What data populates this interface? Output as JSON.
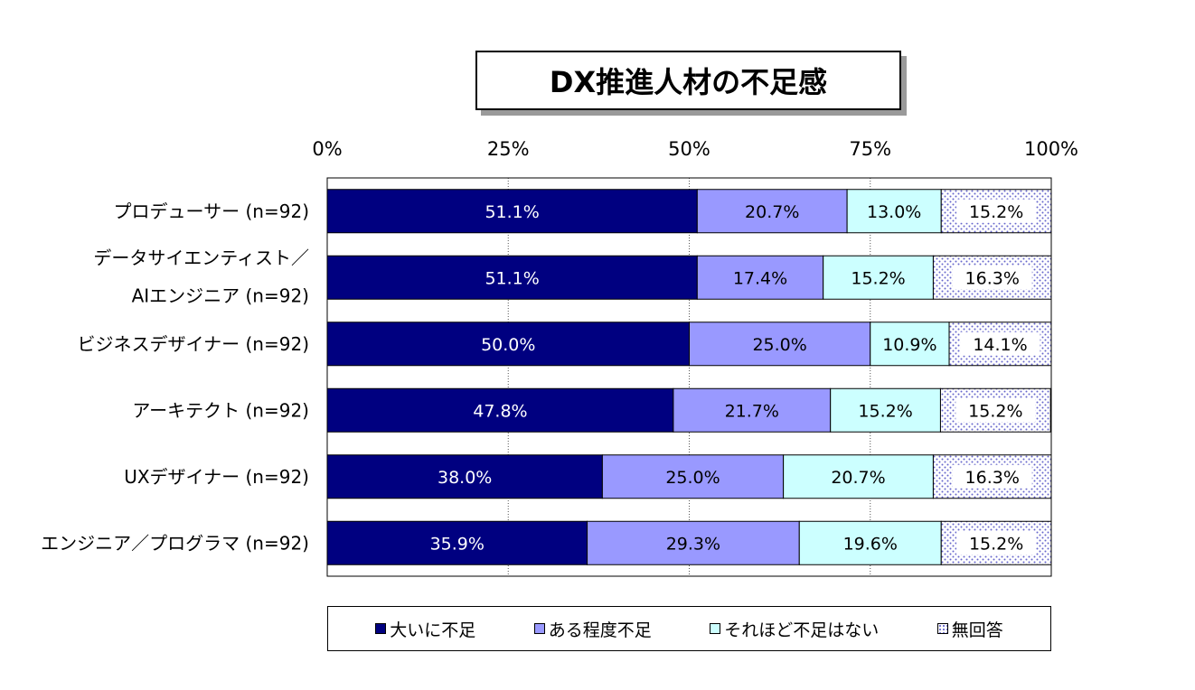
{
  "chart_data": {
    "type": "bar",
    "orientation": "horizontal",
    "stacked": true,
    "title": "DX推進人材の不足感",
    "x_ticks": [
      "0%",
      "25%",
      "50%",
      "75%",
      "100%"
    ],
    "xlim": [
      0,
      100
    ],
    "grid": "vertical dotted at 25% intervals",
    "categories": [
      [
        "プロデューサー (n=92)"
      ],
      [
        "データサイエンティスト／",
        "AIエンジニア (n=92)"
      ],
      [
        "ビジネスデザイナー (n=92)"
      ],
      [
        "アーキテクト (n=92)"
      ],
      [
        "UXデザイナー (n=92)"
      ],
      [
        "エンジニア／プログラマ (n=92)"
      ]
    ],
    "series": [
      {
        "name": "大いに不足",
        "color": "#000080",
        "text_color": "#ffffff",
        "pattern": "solid",
        "values": [
          51.1,
          51.1,
          50.0,
          47.8,
          38.0,
          35.9
        ],
        "labels": [
          "51.1%",
          "51.1%",
          "50.0%",
          "47.8%",
          "38.0%",
          "35.9%"
        ]
      },
      {
        "name": "ある程度不足",
        "color": "#9999ff",
        "text_color": "#000000",
        "pattern": "solid",
        "values": [
          20.7,
          17.4,
          25.0,
          21.7,
          25.0,
          29.3
        ],
        "labels": [
          "20.7%",
          "17.4%",
          "25.0%",
          "21.7%",
          "25.0%",
          "29.3%"
        ]
      },
      {
        "name": "それほど不足はない",
        "color": "#ccffff",
        "text_color": "#000000",
        "pattern": "solid",
        "values": [
          13.0,
          15.2,
          10.9,
          15.2,
          20.7,
          19.6
        ],
        "labels": [
          "13.0%",
          "15.2%",
          "10.9%",
          "15.2%",
          "20.7%",
          "19.6%"
        ]
      },
      {
        "name": "無回答",
        "color": "#ffffff",
        "text_color": "#000000",
        "pattern": "dots",
        "pattern_color": "#6666cc",
        "values": [
          15.2,
          16.3,
          14.1,
          15.2,
          16.3,
          15.2
        ],
        "labels": [
          "15.2%",
          "16.3%",
          "14.1%",
          "15.2%",
          "16.3%",
          "15.2%"
        ]
      }
    ],
    "legend": "bottom"
  }
}
